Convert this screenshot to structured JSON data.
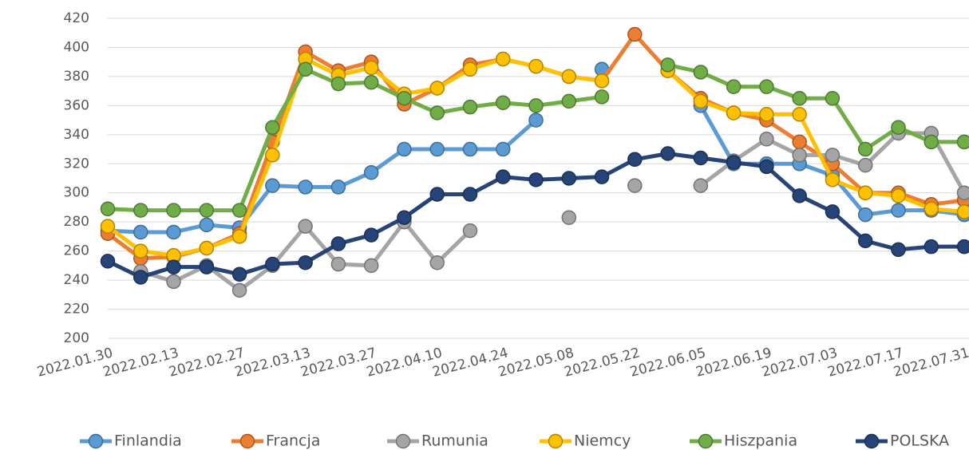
{
  "chart_data": {
    "type": "line",
    "categories": [
      "2022.01.30",
      null,
      "2022.02.13",
      null,
      "2022.02.27",
      null,
      "2022.03.13",
      null,
      "2022.03.27",
      null,
      "2022.04.10",
      null,
      "2022.04.24",
      null,
      "2022.05.08",
      null,
      "2022.05.22",
      null,
      "2022.06.05",
      null,
      "2022.06.19",
      null,
      "2022.07.03",
      null,
      "2022.07.17",
      null,
      "2022.07.31"
    ],
    "ylim": [
      200,
      420
    ],
    "yticks": [
      200,
      220,
      240,
      260,
      280,
      300,
      320,
      340,
      360,
      380,
      400,
      420
    ],
    "grid": true,
    "legend": "bottom",
    "series": [
      {
        "name": "Finlandia",
        "color": "#5b9bd5",
        "values": [
          274,
          273,
          273,
          278,
          276,
          305,
          304,
          304,
          314,
          330,
          330,
          330,
          330,
          350,
          null,
          385,
          null,
          null,
          360,
          320,
          320,
          320,
          312,
          285,
          288,
          288,
          285
        ]
      },
      {
        "name": "Francja",
        "color": "#ed7d31",
        "values": [
          272,
          255,
          256,
          262,
          272,
          335,
          397,
          384,
          390,
          361,
          372,
          388,
          392,
          387,
          380,
          377,
          409,
          384,
          365,
          355,
          350,
          335,
          320,
          300,
          300,
          292,
          295
        ]
      },
      {
        "name": "Rumunia",
        "color": "#a5a5a5",
        "values": [
          null,
          246,
          239,
          250,
          233,
          250,
          277,
          251,
          250,
          280,
          252,
          274,
          null,
          null,
          283,
          null,
          305,
          null,
          305,
          322,
          337,
          326,
          326,
          319,
          341,
          341,
          300
        ]
      },
      {
        "name": "Niemcy",
        "color": "#ffc000",
        "values": [
          277,
          260,
          257,
          262,
          270,
          326,
          392,
          381,
          386,
          368,
          372,
          385,
          392,
          387,
          380,
          377,
          null,
          384,
          363,
          355,
          354,
          354,
          309,
          300,
          298,
          289,
          287
        ]
      },
      {
        "name": "Hiszpania",
        "color": "#70ad47",
        "values": [
          289,
          288,
          288,
          288,
          288,
          345,
          385,
          375,
          376,
          365,
          355,
          359,
          362,
          360,
          363,
          366,
          null,
          388,
          383,
          373,
          373,
          365,
          365,
          330,
          345,
          335,
          335
        ]
      },
      {
        "name": "POLSKA",
        "color": "#264478",
        "values": [
          253,
          242,
          249,
          249,
          244,
          251,
          252,
          265,
          271,
          283,
          299,
          299,
          311,
          309,
          310,
          311,
          323,
          327,
          324,
          321,
          318,
          298,
          287,
          267,
          261,
          263,
          263
        ]
      }
    ]
  }
}
